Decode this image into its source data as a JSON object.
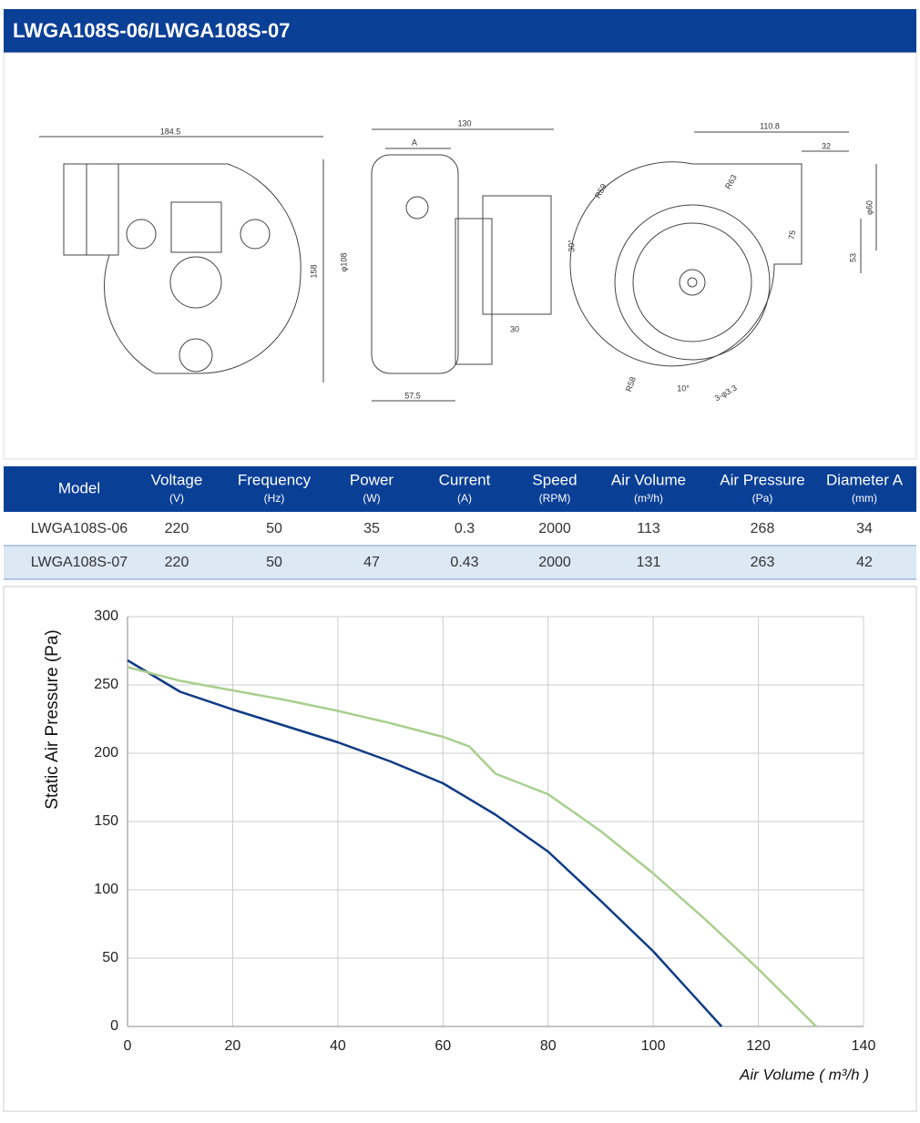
{
  "header": {
    "title": "LWGA108S-06/LWGA108S-07"
  },
  "drawing": {
    "labels": [
      "184.5",
      "158",
      "130",
      "A",
      "φ108",
      "57.5",
      "30",
      "110.8",
      "32",
      "φ60",
      "53",
      "R63",
      "R59",
      "75",
      "30°",
      "R58",
      "10°",
      "3-φ3.3"
    ]
  },
  "table": {
    "columns": [
      {
        "name": "Model"
      },
      {
        "name": "Voltage",
        "unit": "(V)"
      },
      {
        "name": "Frequency",
        "unit": "(Hz)"
      },
      {
        "name": "Power",
        "unit": "(W)"
      },
      {
        "name": "Current",
        "unit": "(A)"
      },
      {
        "name": "Speed",
        "unit": "(RPM)"
      },
      {
        "name": "Air Volume",
        "unit": "(m³/h)"
      },
      {
        "name": "Air Pressure",
        "unit": "(Pa)"
      },
      {
        "name": "Diameter A",
        "unit": "(mm)"
      }
    ],
    "rows": [
      [
        "LWGA108S-06",
        220,
        50,
        35,
        0.3,
        2000,
        113,
        268,
        34
      ],
      [
        "LWGA108S-07",
        220,
        50,
        47,
        0.43,
        2000,
        131,
        263,
        42
      ]
    ]
  },
  "chart_data": {
    "type": "line",
    "x_label": "Air Volume ( m³/h )",
    "y_label": "Static Air Pressure  (Pa)",
    "xlim": [
      0,
      140
    ],
    "xticks": [
      0,
      20,
      40,
      60,
      80,
      100,
      120,
      140
    ],
    "ylim": [
      0,
      300
    ],
    "yticks": [
      0,
      50,
      100,
      150,
      200,
      250,
      300
    ],
    "grid": true,
    "series": [
      {
        "color": "#103b85",
        "x": [
          0,
          10,
          20,
          30,
          40,
          50,
          60,
          70,
          80,
          90,
          100,
          113
        ],
        "values": [
          268,
          245,
          232,
          220,
          208,
          194,
          178,
          155,
          128,
          92,
          55,
          0
        ]
      },
      {
        "color": "#a9cf8f",
        "x": [
          0,
          10,
          20,
          30,
          40,
          50,
          60,
          65,
          70,
          80,
          90,
          100,
          110,
          120,
          131
        ],
        "values": [
          263,
          253,
          246,
          239,
          231,
          222,
          212,
          205,
          185,
          170,
          143,
          112,
          78,
          42,
          0
        ]
      }
    ]
  }
}
